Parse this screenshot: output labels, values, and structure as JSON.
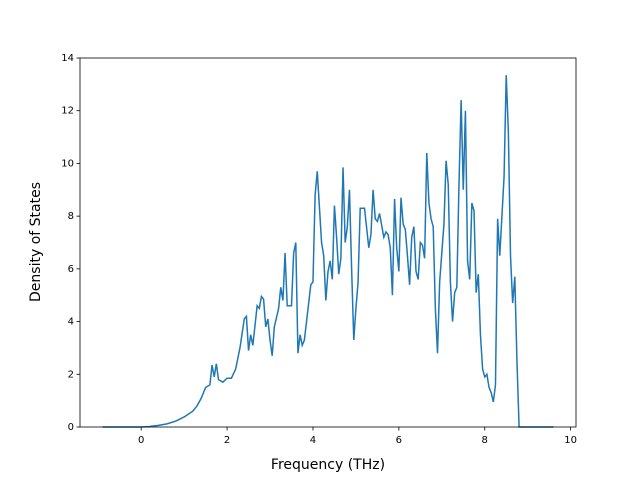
{
  "chart_data": {
    "type": "line",
    "xlabel": "Frequency (THz)",
    "ylabel": "Density of States",
    "x": [
      -0.9,
      0,
      0.2,
      0.4,
      0.6,
      0.8,
      1.0,
      1.2,
      1.3,
      1.4,
      1.5,
      1.6,
      1.65,
      1.7,
      1.75,
      1.8,
      1.9,
      2.0,
      2.1,
      2.2,
      2.3,
      2.4,
      2.45,
      2.5,
      2.55,
      2.6,
      2.7,
      2.75,
      2.8,
      2.85,
      2.9,
      2.95,
      3.0,
      3.05,
      3.1,
      3.2,
      3.25,
      3.3,
      3.35,
      3.4,
      3.5,
      3.55,
      3.6,
      3.65,
      3.7,
      3.75,
      3.8,
      3.85,
      3.95,
      4.0,
      4.05,
      4.1,
      4.2,
      4.25,
      4.3,
      4.35,
      4.4,
      4.45,
      4.5,
      4.55,
      4.6,
      4.65,
      4.7,
      4.75,
      4.8,
      4.85,
      4.9,
      4.95,
      5.0,
      5.05,
      5.1,
      5.2,
      5.3,
      5.35,
      5.4,
      5.45,
      5.5,
      5.55,
      5.65,
      5.7,
      5.75,
      5.8,
      5.85,
      5.9,
      5.95,
      6.0,
      6.05,
      6.1,
      6.15,
      6.2,
      6.25,
      6.3,
      6.35,
      6.4,
      6.45,
      6.5,
      6.55,
      6.6,
      6.65,
      6.7,
      6.75,
      6.8,
      6.85,
      6.9,
      6.95,
      7.05,
      7.1,
      7.15,
      7.2,
      7.25,
      7.3,
      7.35,
      7.4,
      7.45,
      7.5,
      7.55,
      7.6,
      7.65,
      7.7,
      7.75,
      7.8,
      7.85,
      7.9,
      7.95,
      8.0,
      8.05,
      8.1,
      8.15,
      8.2,
      8.25,
      8.3,
      8.35,
      8.4,
      8.45,
      8.5,
      8.55,
      8.6,
      8.65,
      8.7,
      8.75,
      8.8,
      9.6
    ],
    "series": [
      {
        "color": "#1f77b4",
        "values": [
          0,
          0,
          0.02,
          0.06,
          0.12,
          0.22,
          0.38,
          0.6,
          0.8,
          1.1,
          1.5,
          1.6,
          2.35,
          1.9,
          2.4,
          1.8,
          1.7,
          1.85,
          1.85,
          2.2,
          3.0,
          4.1,
          4.2,
          2.9,
          3.5,
          3.1,
          4.6,
          4.5,
          4.95,
          4.85,
          3.8,
          4.1,
          3.3,
          2.7,
          3.8,
          4.5,
          5.3,
          4.8,
          6.6,
          4.6,
          4.6,
          6.6,
          7.0,
          2.8,
          3.5,
          3.1,
          3.3,
          4.0,
          5.4,
          5.5,
          8.8,
          9.7,
          7.0,
          6.5,
          4.8,
          5.9,
          6.3,
          5.6,
          8.4,
          7.2,
          5.8,
          6.4,
          9.85,
          7.0,
          7.6,
          9.0,
          6.0,
          3.3,
          4.5,
          5.5,
          8.3,
          8.3,
          6.8,
          7.3,
          9.0,
          7.9,
          7.8,
          8.1,
          7.2,
          7.4,
          7.3,
          6.8,
          5.0,
          8.65,
          6.8,
          5.9,
          8.7,
          7.7,
          7.5,
          6.5,
          5.4,
          7.2,
          7.6,
          5.9,
          5.6,
          7.0,
          6.9,
          6.4,
          10.4,
          8.5,
          7.9,
          7.6,
          4.5,
          2.8,
          5.5,
          7.7,
          10.1,
          9.2,
          5.5,
          4.0,
          5.1,
          5.3,
          9.2,
          12.4,
          9.0,
          12.0,
          6.3,
          5.6,
          8.5,
          8.2,
          5.1,
          5.8,
          3.5,
          2.2,
          1.9,
          2.0,
          1.5,
          1.3,
          0.95,
          1.6,
          7.9,
          6.5,
          8.0,
          9.5,
          13.35,
          11.2,
          6.5,
          4.7,
          5.7,
          2.5,
          0,
          0
        ]
      }
    ],
    "xlim": [
      -1.425,
      10.125
    ],
    "ylim": [
      0,
      14
    ],
    "xticks": [
      0,
      2,
      4,
      6,
      8,
      10
    ],
    "yticks": [
      0,
      2,
      4,
      6,
      8,
      10,
      12,
      14
    ]
  }
}
